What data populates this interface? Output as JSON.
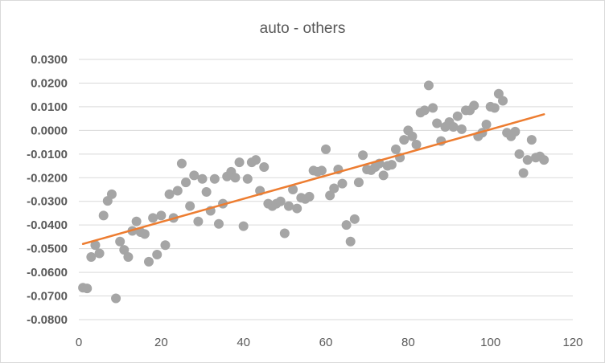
{
  "colors": {
    "points": "#a5a5a5",
    "trendline": "#ed7d31",
    "gridline": "#d9d9d9",
    "text": "#595959"
  },
  "chart_data": {
    "type": "scatter",
    "title": "auto - others",
    "xlabel": "",
    "ylabel": "",
    "xlim": [
      0,
      120
    ],
    "ylim": [
      -0.08,
      0.03
    ],
    "x_ticks": [
      "0",
      "20",
      "40",
      "60",
      "80",
      "100",
      "120"
    ],
    "y_ticks": [
      "0.0300",
      "0.0200",
      "0.0100",
      "0.0000",
      "-0.0100",
      "-0.0200",
      "-0.0300",
      "-0.0400",
      "-0.0500",
      "-0.0600",
      "-0.0700",
      "-0.0800"
    ],
    "grid": "horizontal",
    "legend": "none",
    "trendline": {
      "type": "linear",
      "x": [
        1,
        113
      ],
      "y": [
        -0.048,
        0.0068
      ]
    },
    "series": [
      {
        "x": [
          1,
          2,
          3,
          4,
          5,
          6,
          7,
          8,
          9,
          10,
          11,
          12,
          13,
          14,
          15,
          16,
          17,
          18,
          19,
          20,
          21,
          22,
          23,
          24,
          25,
          26,
          27,
          28,
          29,
          30,
          31,
          32,
          33,
          34,
          35,
          36,
          37,
          38,
          39,
          40,
          41,
          42,
          43,
          44,
          45,
          46,
          47,
          48,
          49,
          50,
          51,
          52,
          53,
          54,
          55,
          56,
          57,
          58,
          59,
          60,
          61,
          62,
          63,
          64,
          65,
          66,
          67,
          68,
          69,
          70,
          71,
          72,
          73,
          74,
          75,
          76,
          77,
          78,
          79,
          80,
          81,
          82,
          83,
          84,
          85,
          86,
          87,
          88,
          89,
          90,
          91,
          92,
          93,
          94,
          95,
          96,
          97,
          98,
          99,
          100,
          101,
          102,
          103,
          104,
          105,
          106,
          107,
          108,
          109,
          110,
          111,
          112,
          113
        ],
        "y": [
          -0.0665,
          -0.0668,
          -0.0535,
          -0.0485,
          -0.052,
          -0.036,
          -0.0298,
          -0.027,
          -0.071,
          -0.047,
          -0.0505,
          -0.0535,
          -0.0425,
          -0.0385,
          -0.043,
          -0.0438,
          -0.0555,
          -0.037,
          -0.0525,
          -0.036,
          -0.0485,
          -0.027,
          -0.037,
          -0.0255,
          -0.014,
          -0.022,
          -0.032,
          -0.019,
          -0.0385,
          -0.0205,
          -0.026,
          -0.034,
          -0.0205,
          -0.0395,
          -0.031,
          -0.0195,
          -0.0175,
          -0.02,
          -0.0135,
          -0.0405,
          -0.0205,
          -0.0135,
          -0.0125,
          -0.0255,
          -0.0155,
          -0.031,
          -0.032,
          -0.031,
          -0.03,
          -0.0435,
          -0.032,
          -0.025,
          -0.033,
          -0.0285,
          -0.029,
          -0.028,
          -0.017,
          -0.0175,
          -0.017,
          -0.008,
          -0.0275,
          -0.0245,
          -0.0165,
          -0.0225,
          -0.04,
          -0.047,
          -0.0375,
          -0.022,
          -0.0105,
          -0.0165,
          -0.0168,
          -0.0155,
          -0.014,
          -0.019,
          -0.015,
          -0.0145,
          -0.008,
          -0.0115,
          -0.004,
          0.0,
          -0.0025,
          -0.006,
          0.0075,
          0.0085,
          0.019,
          0.0095,
          0.003,
          -0.0045,
          0.0015,
          0.0035,
          0.0015,
          0.006,
          0.0005,
          0.0085,
          0.0085,
          0.0105,
          -0.0025,
          -0.001,
          0.0025,
          0.01,
          0.0095,
          0.0155,
          0.0125,
          -0.001,
          -0.0025,
          -0.0005,
          -0.01,
          -0.018,
          -0.0125,
          -0.004,
          -0.0115,
          -0.011,
          -0.0125
        ]
      }
    ]
  }
}
